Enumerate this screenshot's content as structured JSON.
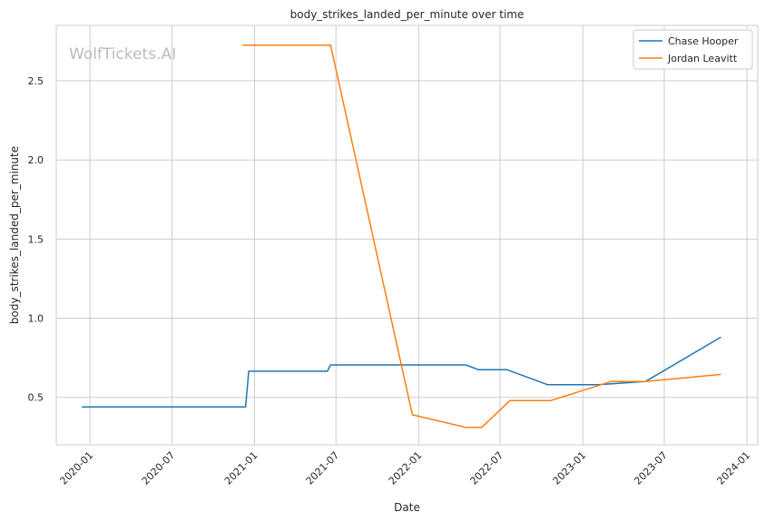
{
  "chart_data": {
    "type": "line",
    "title": "body_strikes_landed_per_minute over time",
    "xlabel": "Date",
    "ylabel": "body_strikes_landed_per_minute",
    "watermark": "WolfTickets.AI",
    "grid": true,
    "legend_position": "top-right",
    "x_ticks": [
      "2020-01",
      "2020-07",
      "2021-01",
      "2021-07",
      "2022-01",
      "2022-07",
      "2023-01",
      "2023-07",
      "2024-01"
    ],
    "y_ticks": [
      "0.5",
      "1.0",
      "1.5",
      "2.0",
      "2.5"
    ],
    "ylim": [
      0.2,
      2.85
    ],
    "xlim": [
      "2019-10-18",
      "2024-01-25"
    ],
    "series": [
      {
        "name": "Chase Hooper",
        "color": "#1f77b4",
        "points": [
          {
            "x": "2019-12-14",
            "y": 0.44
          },
          {
            "x": "2020-12-12",
            "y": 0.44
          },
          {
            "x": "2020-12-19",
            "y": 0.665
          },
          {
            "x": "2021-06-12",
            "y": 0.665
          },
          {
            "x": "2021-06-19",
            "y": 0.705
          },
          {
            "x": "2022-04-16",
            "y": 0.705
          },
          {
            "x": "2022-05-14",
            "y": 0.675
          },
          {
            "x": "2022-07-16",
            "y": 0.675
          },
          {
            "x": "2022-10-15",
            "y": 0.58
          },
          {
            "x": "2023-02-04",
            "y": 0.58
          },
          {
            "x": "2023-05-20",
            "y": 0.6
          },
          {
            "x": "2023-11-04",
            "y": 0.88
          }
        ]
      },
      {
        "name": "Jordan Leavitt",
        "color": "#ff7f0e",
        "points": [
          {
            "x": "2020-12-05",
            "y": 2.725
          },
          {
            "x": "2021-06-19",
            "y": 2.725
          },
          {
            "x": "2021-12-18",
            "y": 0.39
          },
          {
            "x": "2022-04-16",
            "y": 0.31
          },
          {
            "x": "2022-05-21",
            "y": 0.31
          },
          {
            "x": "2022-07-23",
            "y": 0.48
          },
          {
            "x": "2022-10-22",
            "y": 0.48
          },
          {
            "x": "2023-03-04",
            "y": 0.6
          },
          {
            "x": "2023-05-20",
            "y": 0.6
          },
          {
            "x": "2023-11-04",
            "y": 0.645
          }
        ]
      }
    ]
  }
}
